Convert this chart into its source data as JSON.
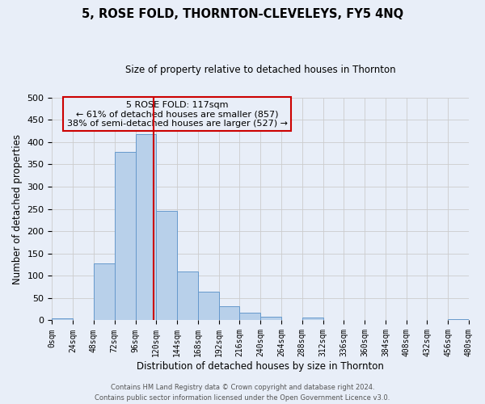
{
  "title": "5, ROSE FOLD, THORNTON-CLEVELEYS, FY5 4NQ",
  "subtitle": "Size of property relative to detached houses in Thornton",
  "xlabel": "Distribution of detached houses by size in Thornton",
  "ylabel": "Number of detached properties",
  "bin_edges": [
    0,
    24,
    48,
    72,
    96,
    120,
    144,
    168,
    192,
    216,
    240,
    264,
    288,
    312,
    336,
    360,
    384,
    408,
    432,
    456,
    480
  ],
  "bar_heights": [
    5,
    0,
    128,
    378,
    418,
    246,
    110,
    65,
    32,
    17,
    8,
    0,
    6,
    0,
    0,
    0,
    0,
    0,
    0,
    3
  ],
  "bar_color": "#b8d0ea",
  "bar_edgecolor": "#6699cc",
  "vline_x": 117,
  "vline_color": "#cc0000",
  "ylim": [
    0,
    500
  ],
  "annotation_title": "5 ROSE FOLD: 117sqm",
  "annotation_line1": "← 61% of detached houses are smaller (857)",
  "annotation_line2": "38% of semi-detached houses are larger (527) →",
  "annotation_box_edgecolor": "#cc0000",
  "footer_line1": "Contains HM Land Registry data © Crown copyright and database right 2024.",
  "footer_line2": "Contains public sector information licensed under the Open Government Licence v3.0.",
  "background_color": "#e8eef8",
  "grid_color": "#cccccc"
}
